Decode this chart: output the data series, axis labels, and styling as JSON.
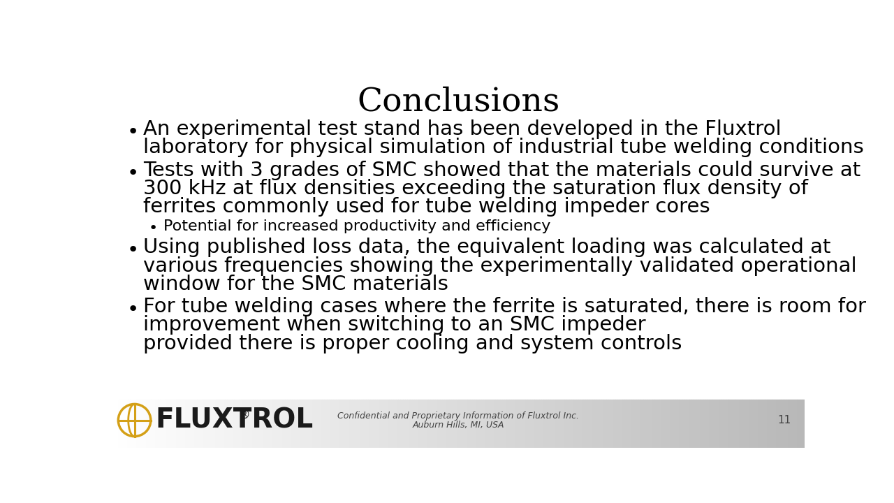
{
  "title": "Conclusions",
  "title_fontsize": 34,
  "background_color": "#ffffff",
  "text_color": "#000000",
  "bullet_points": [
    {
      "level": 1,
      "lines": [
        "An experimental test stand has been developed in the Fluxtrol",
        "laboratory for physical simulation of industrial tube welding conditions"
      ],
      "fontsize": 21
    },
    {
      "level": 1,
      "lines": [
        "Tests with 3 grades of SMC showed that the materials could survive at",
        "300 kHz at flux densities exceeding the saturation flux density of",
        "ferrites commonly used for tube welding impeder cores"
      ],
      "fontsize": 21
    },
    {
      "level": 2,
      "lines": [
        "Potential for increased productivity and efficiency"
      ],
      "fontsize": 16
    },
    {
      "level": 1,
      "lines": [
        "Using published loss data, the equivalent loading was calculated at",
        "various frequencies showing the experimentally validated operational",
        "window for the SMC materials"
      ],
      "fontsize": 21
    },
    {
      "level": 1,
      "lines": [
        "For tube welding cases where the ferrite is saturated, there is room for",
        "improvement when switching to an SMC impeder",
        "provided there is proper cooling and system controls"
      ],
      "fontsize": 21
    }
  ],
  "footer_text1": "Confidential and Proprietary Information of Fluxtrol Inc.",
  "footer_text2": "Auburn Hills, MI, USA",
  "footer_fontsize": 9,
  "slide_number": "11",
  "logo_text": "FLUXTROL",
  "logo_color": "#d4a017"
}
